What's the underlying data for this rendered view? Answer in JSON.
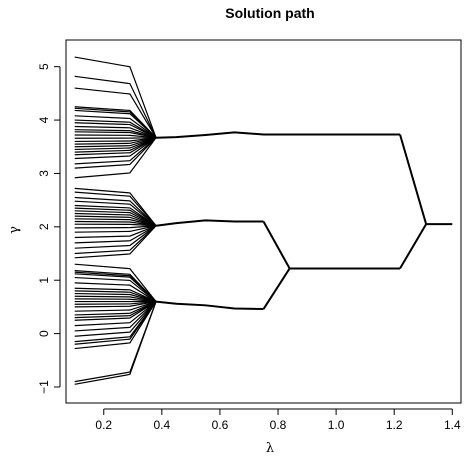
{
  "chart_data": {
    "type": "line",
    "title": "Solution path",
    "xlabel": "λ",
    "ylabel": "γ",
    "xlim": [
      0.07,
      1.43
    ],
    "ylim": [
      -1.3,
      5.5
    ],
    "xticks": [
      0.2,
      0.4,
      0.6,
      0.8,
      1.0,
      1.2,
      1.4
    ],
    "xtick_labels": [
      "0.2",
      "0.4",
      "0.6",
      "0.8",
      "1.0",
      "1.2",
      "1.4"
    ],
    "yticks": [
      -1,
      0,
      1,
      2,
      3,
      4,
      5
    ],
    "ytick_labels": [
      "−1",
      "0",
      "1",
      "2",
      "3",
      "4",
      "5"
    ],
    "grid": false,
    "fusion_lambda": 0.38,
    "cluster_centers": [
      3.67,
      2.02,
      0.6
    ],
    "individual_starts": [
      5.18,
      4.82,
      4.6,
      4.25,
      4.22,
      4.18,
      4.08,
      4.0,
      3.95,
      3.88,
      3.82,
      3.78,
      3.72,
      3.66,
      3.6,
      3.55,
      3.5,
      3.45,
      3.4,
      3.35,
      3.28,
      3.18,
      3.1,
      2.92,
      2.72,
      2.65,
      2.55,
      2.48,
      2.4,
      2.35,
      2.3,
      2.25,
      2.2,
      2.15,
      2.1,
      2.05,
      1.98,
      1.9,
      1.8,
      1.7,
      1.6,
      1.5,
      1.42,
      1.3,
      1.18,
      1.15,
      1.12,
      1.05,
      0.95,
      0.85,
      0.8,
      0.75,
      0.7,
      0.65,
      0.6,
      0.55,
      0.5,
      0.42,
      0.35,
      0.3,
      0.25,
      0.15,
      0.05,
      -0.05,
      -0.15,
      -0.2,
      -0.28,
      -0.9,
      -0.95
    ],
    "clusters": [
      {
        "lambda": [
          0.38,
          0.45,
          0.55,
          0.65,
          0.75,
          1.22
        ],
        "gamma": [
          3.67,
          3.68,
          3.72,
          3.77,
          3.73,
          3.73
        ]
      },
      {
        "lambda": [
          0.38,
          0.45,
          0.55,
          0.65,
          0.75
        ],
        "gamma": [
          2.02,
          2.07,
          2.12,
          2.1,
          2.1
        ]
      },
      {
        "lambda": [
          0.38,
          0.45,
          0.55,
          0.65,
          0.75
        ],
        "gamma": [
          0.6,
          0.56,
          0.53,
          0.47,
          0.46
        ]
      },
      {
        "lambda": [
          0.84,
          1.22
        ],
        "gamma": [
          1.22,
          1.22
        ]
      },
      {
        "lambda": [
          1.31,
          1.4
        ],
        "gamma": [
          2.05,
          2.05
        ]
      }
    ],
    "merges": [
      {
        "from_lambda": 0.75,
        "from_gamma": 2.1,
        "to_lambda": 0.84,
        "to_gamma": 1.22
      },
      {
        "from_lambda": 0.75,
        "from_gamma": 0.46,
        "to_lambda": 0.84,
        "to_gamma": 1.22
      },
      {
        "from_lambda": 1.22,
        "from_gamma": 3.73,
        "to_lambda": 1.31,
        "to_gamma": 2.05
      },
      {
        "from_lambda": 1.22,
        "from_gamma": 1.22,
        "to_lambda": 1.31,
        "to_gamma": 2.05
      }
    ]
  }
}
